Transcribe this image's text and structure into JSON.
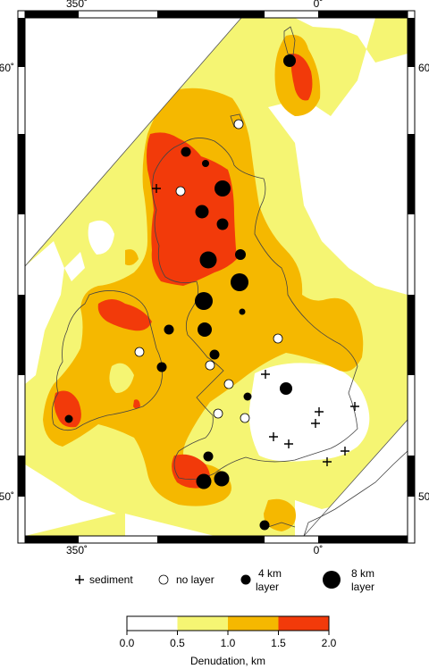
{
  "map": {
    "frame_labels": {
      "top_left_lon": "350˚",
      "top_right_lon": "0˚",
      "bottom_left_lon": "350˚",
      "bottom_right_lon": "0˚",
      "left_top_lat": "60˚",
      "right_top_lat": "60˚",
      "left_bottom_lat": "50˚",
      "right_bottom_lat": "50˚"
    },
    "region": "British Isles",
    "contour_colors": {
      "band_0_0_5": "#ffffff",
      "band_0_5_1_0": "#f5f573",
      "band_1_0_1_5": "#f5b800",
      "band_1_5_2_0": "#f23a0a",
      "coastline": "#555555"
    }
  },
  "symbol_legend": {
    "sediment": "sediment",
    "no_layer": "no layer",
    "layer_4km_line1": "4 km",
    "layer_4km_line2": "layer",
    "layer_8km_line1": "8 km",
    "layer_8km_line2": "layer"
  },
  "colorbar": {
    "tick_labels": [
      "0.0",
      "0.5",
      "1.0",
      "1.5",
      "2.0"
    ],
    "colors": [
      "#ffffff",
      "#f5f573",
      "#f5b800",
      "#f23a0a"
    ],
    "title": "Denudation, km"
  }
}
